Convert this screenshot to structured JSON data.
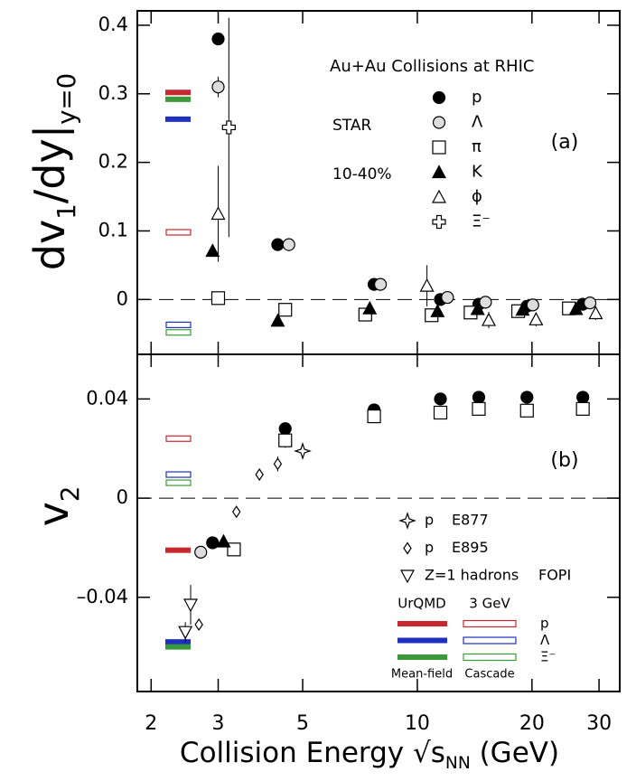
{
  "chart_data": [
    {
      "type": "scatter",
      "panel_label": "(a)",
      "annotations": [
        "Au+Au Collisions at RHIC",
        "STAR",
        "10-40%"
      ],
      "ylabel": [
        {
          "text": "dv"
        },
        {
          "text": "1",
          "sub": true
        },
        {
          "text": "/dy|"
        },
        {
          "text": "y=0",
          "sub": true
        }
      ],
      "xscale": "log",
      "xlim": [
        1.84,
        34
      ],
      "xticks": [
        2,
        3,
        5,
        10,
        20,
        30
      ],
      "ylim": [
        -0.08,
        0.421
      ],
      "yticks": [
        0,
        0.1,
        0.2,
        0.3,
        0.4
      ],
      "zero_line": true,
      "series": [
        {
          "name": "p",
          "marker": "circle",
          "filled": true,
          "color": "#000000",
          "x": [
            3.0,
            4.3,
            7.7,
            11.5,
            14.5,
            19.4,
            27.2
          ],
          "values": [
            0.38,
            0.08,
            0.022,
            0.0,
            -0.007,
            -0.01,
            -0.007
          ],
          "errors": [
            0.005,
            0.004,
            0.003,
            0.003,
            0.003,
            0.003,
            0.002
          ]
        },
        {
          "name": "Λ",
          "marker": "circle",
          "filled": false,
          "color": "#000000",
          "x": [
            3.0,
            4.6,
            8.0,
            12.0,
            15.1,
            20.1,
            28.4
          ],
          "values": [
            0.31,
            0.08,
            0.022,
            0.003,
            -0.004,
            -0.008,
            -0.005
          ],
          "errors": [
            0.015,
            0.008,
            0.004,
            0.004,
            0.004,
            0.004,
            0.004
          ]
        },
        {
          "name": "π",
          "marker": "square",
          "filled": false,
          "color": "#000000",
          "x": [
            3.0,
            4.5,
            7.3,
            10.9,
            13.8,
            18.4,
            25.0
          ],
          "values": [
            0.002,
            -0.015,
            -0.022,
            -0.023,
            -0.019,
            -0.017,
            -0.013
          ],
          "errors": [
            0.003,
            0.003,
            0.002,
            0.002,
            0.002,
            0.002,
            0.002
          ]
        },
        {
          "name": "K",
          "marker": "triangle-up",
          "filled": true,
          "color": "#000000",
          "x": [
            2.9,
            4.3,
            7.5,
            11.3,
            14.4,
            18.9,
            26.1
          ],
          "values": [
            0.071,
            -0.031,
            -0.013,
            -0.017,
            -0.014,
            -0.015,
            -0.014
          ],
          "errors": [
            0.008,
            0.008,
            0.004,
            0.004,
            0.004,
            0.004,
            0.004
          ]
        },
        {
          "name": "ϕ",
          "marker": "triangle-up",
          "filled": false,
          "color": "#000000",
          "x": [
            3.0,
            10.6,
            15.4,
            20.5,
            29.4
          ],
          "values": [
            0.125,
            0.02,
            -0.03,
            -0.029,
            -0.02
          ],
          "errors": [
            0.07,
            0.03,
            0.012,
            0.01,
            0.01
          ]
        },
        {
          "name": "Ξ⁻",
          "marker": "cross",
          "filled": false,
          "color": "#000000",
          "x": [
            3.2
          ],
          "values": [
            0.251
          ],
          "errors": [
            0.16
          ]
        }
      ],
      "models": [
        {
          "name": "p",
          "color": "#c8282d",
          "mean_field": 0.302,
          "cascade": 0.098
        },
        {
          "name": "Λ",
          "color": "#1f2fbf",
          "mean_field": 0.263,
          "cascade": -0.037
        },
        {
          "name": "Ξ⁻",
          "color": "#3a9a3a",
          "mean_field": 0.292,
          "cascade": -0.048
        }
      ]
    },
    {
      "type": "scatter",
      "panel_label": "(b)",
      "ylabel": [
        {
          "text": "v"
        },
        {
          "text": "2",
          "sub": true
        }
      ],
      "xlabel": [
        {
          "text": "Collision Energy "
        },
        {
          "text": "√s"
        },
        {
          "text": "NN",
          "sub": true
        },
        {
          "text": " (GeV)"
        }
      ],
      "xscale": "log",
      "xlim": [
        1.84,
        34
      ],
      "xticks": [
        2,
        3,
        5,
        10,
        20,
        30
      ],
      "ylim": [
        -0.078,
        0.058
      ],
      "yticks": [
        0.04,
        0,
        {
          "value": -0.04,
          "label": "–0.04"
        }
      ],
      "zero_line": true,
      "series": [
        {
          "marker": "circle",
          "filled": true,
          "color": "#000000",
          "x": [
            2.9,
            4.5,
            7.7,
            11.5,
            14.5,
            19.4,
            27.2
          ],
          "values": [
            -0.018,
            0.028,
            0.0356,
            0.04,
            0.0407,
            0.0407,
            0.0407
          ],
          "errors": [
            0.001,
            0.0025,
            0.001,
            0.0005,
            0.0005,
            0.0005,
            0.0005
          ]
        },
        {
          "marker": "circle",
          "filled": false,
          "color": "#000000",
          "x": [
            2.7
          ],
          "values": [
            -0.0218
          ],
          "errors": [
            0.002
          ]
        },
        {
          "marker": "square",
          "filled": false,
          "color": "#000000",
          "x": [
            3.3,
            4.5,
            7.7,
            11.5,
            14.5,
            19.4,
            27.2
          ],
          "values": [
            -0.0207,
            0.0233,
            0.033,
            0.0345,
            0.036,
            0.0353,
            0.036
          ],
          "errors": [
            0.002,
            0.003,
            0.001,
            0.001,
            0.001,
            0.001,
            0.001
          ]
        },
        {
          "marker": "triangle-up",
          "filled": true,
          "color": "#000000",
          "x": [
            3.1
          ],
          "values": [
            -0.0175
          ],
          "errors": [
            0.001
          ]
        },
        {
          "name": "p",
          "experiment": "E877",
          "marker": "star",
          "filled": false,
          "color": "#000000",
          "x": [
            5.0
          ],
          "values": [
            0.019
          ],
          "errors": [
            0.002
          ]
        },
        {
          "name": "p",
          "experiment": "E895",
          "marker": "diamond",
          "filled": false,
          "color": "#000000",
          "x": [
            2.67,
            3.35,
            3.85,
            4.3
          ],
          "values": [
            -0.051,
            -0.0055,
            0.0095,
            0.0138
          ],
          "errors": [
            0.002,
            0.002,
            0.002,
            0.003
          ]
        },
        {
          "name": "Z=1 hadrons",
          "experiment": "FOPI",
          "marker": "triangle-down",
          "filled": false,
          "color": "#000000",
          "x": [
            2.46,
            2.54
          ],
          "values": [
            -0.054,
            -0.043
          ],
          "errors": [
            0.004,
            0.008
          ]
        }
      ],
      "models": [
        {
          "name": "p",
          "color": "#c8282d",
          "mean_field": -0.021,
          "cascade": 0.024
        },
        {
          "name": "Λ",
          "color": "#1f2fbf",
          "mean_field": -0.058,
          "cascade": 0.0095
        },
        {
          "name": "Ξ⁻",
          "color": "#3a9a3a",
          "mean_field": -0.06,
          "cascade": 0.0062
        }
      ],
      "model_legend": {
        "left_title": "UrQMD",
        "right_title": "3 GeV",
        "left_foot": "Mean-field",
        "right_foot": "Cascade"
      }
    }
  ]
}
